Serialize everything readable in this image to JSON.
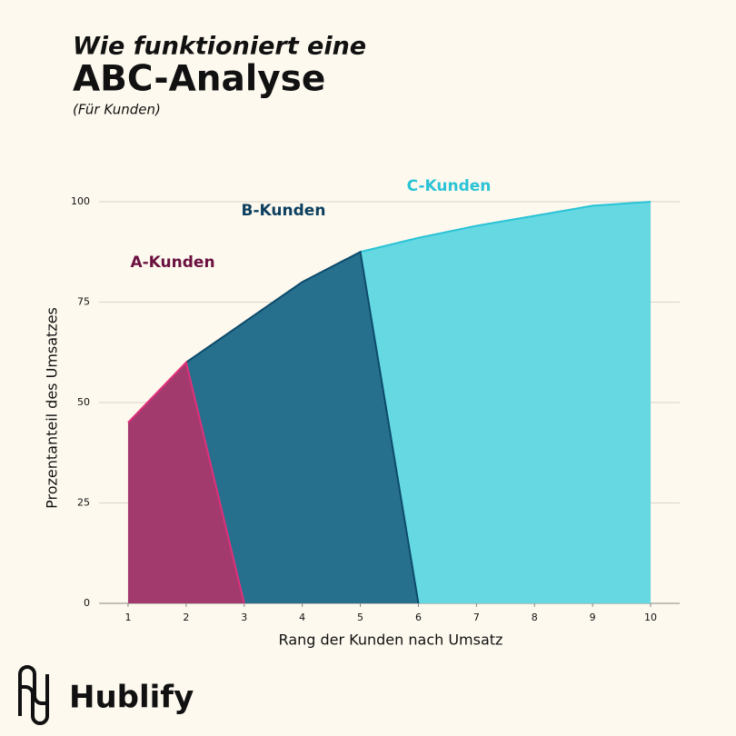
{
  "chart_data": {
    "type": "area",
    "kicker": "Wie funktioniert eine",
    "title": "ABC-Analyse",
    "subtitle": "(Für Kunden)",
    "x_label": "Rang der Kunden nach Umsatz",
    "y_label": "Prozentanteil des Umsatzes",
    "xlim": [
      0.5,
      10.5
    ],
    "xticks": [
      1,
      2,
      3,
      4,
      5,
      6,
      7,
      8,
      9,
      10
    ],
    "ylim": [
      0,
      100
    ],
    "yticks": [
      0,
      25,
      50,
      75,
      100
    ],
    "grid": true,
    "series": [
      {
        "name": "C-Kunden",
        "color": "#2bc3d6",
        "fill": "#65d8e2",
        "x": [
          5,
          6,
          7,
          8,
          9,
          10
        ],
        "values": [
          87.5,
          91,
          94,
          96.5,
          99,
          100
        ]
      },
      {
        "name": "B-Kunden",
        "color": "#0d4a6b",
        "fill": "#26708e",
        "x": [
          2,
          3,
          4,
          5,
          6
        ],
        "values": [
          60,
          70,
          80,
          87.5,
          0
        ]
      },
      {
        "name": "A-Kunden",
        "color": "#e0307a",
        "fill": "#a33a6e",
        "x": [
          1,
          2,
          3
        ],
        "values": [
          45,
          60,
          0
        ]
      }
    ]
  },
  "brand": "Hublify"
}
